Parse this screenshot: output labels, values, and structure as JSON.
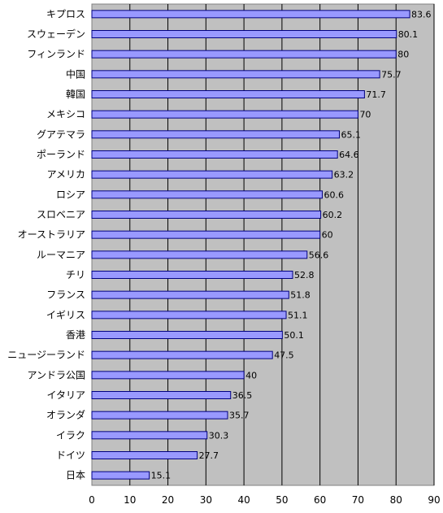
{
  "chart_data": {
    "type": "bar",
    "orientation": "horizontal",
    "categories": [
      "キプロス",
      "スウェーデン",
      "フィンランド",
      "中国",
      "韓国",
      "メキシコ",
      "グアテマラ",
      "ポーランド",
      "アメリカ",
      "ロシア",
      "スロベニア",
      "オーストラリア",
      "ルーマニア",
      "チリ",
      "フランス",
      "イギリス",
      "香港",
      "ニュージーランド",
      "アンドラ公国",
      "イタリア",
      "オランダ",
      "イラク",
      "ドイツ",
      "日本"
    ],
    "values": [
      83.6,
      80.1,
      80,
      75.7,
      71.7,
      70,
      65.1,
      64.6,
      63.2,
      60.6,
      60.2,
      60,
      56.6,
      52.8,
      51.8,
      51.1,
      50.1,
      47.5,
      40,
      36.5,
      35.7,
      30.3,
      27.7,
      15.1
    ],
    "value_labels": [
      "83.6",
      "80.1",
      "80",
      "75.7",
      "71.7",
      "70",
      "65.1",
      "64.6",
      "63.2",
      "60.6",
      "60.2",
      "60",
      "56.6",
      "52.8",
      "51.8",
      "51.1",
      "50.1",
      "47.5",
      "40",
      "36.5",
      "35.7",
      "30.3",
      "27.7",
      "15.1"
    ],
    "xlim": [
      0,
      90
    ],
    "x_ticks": [
      "0",
      "10",
      "20",
      "30",
      "40",
      "50",
      "60",
      "70",
      "80",
      "90"
    ],
    "grid": true,
    "colors": {
      "bar_fill": "#9999ff",
      "bar_stroke": "#000080",
      "plot_bg": "#c0c0c0",
      "gridline": "#000000"
    }
  }
}
